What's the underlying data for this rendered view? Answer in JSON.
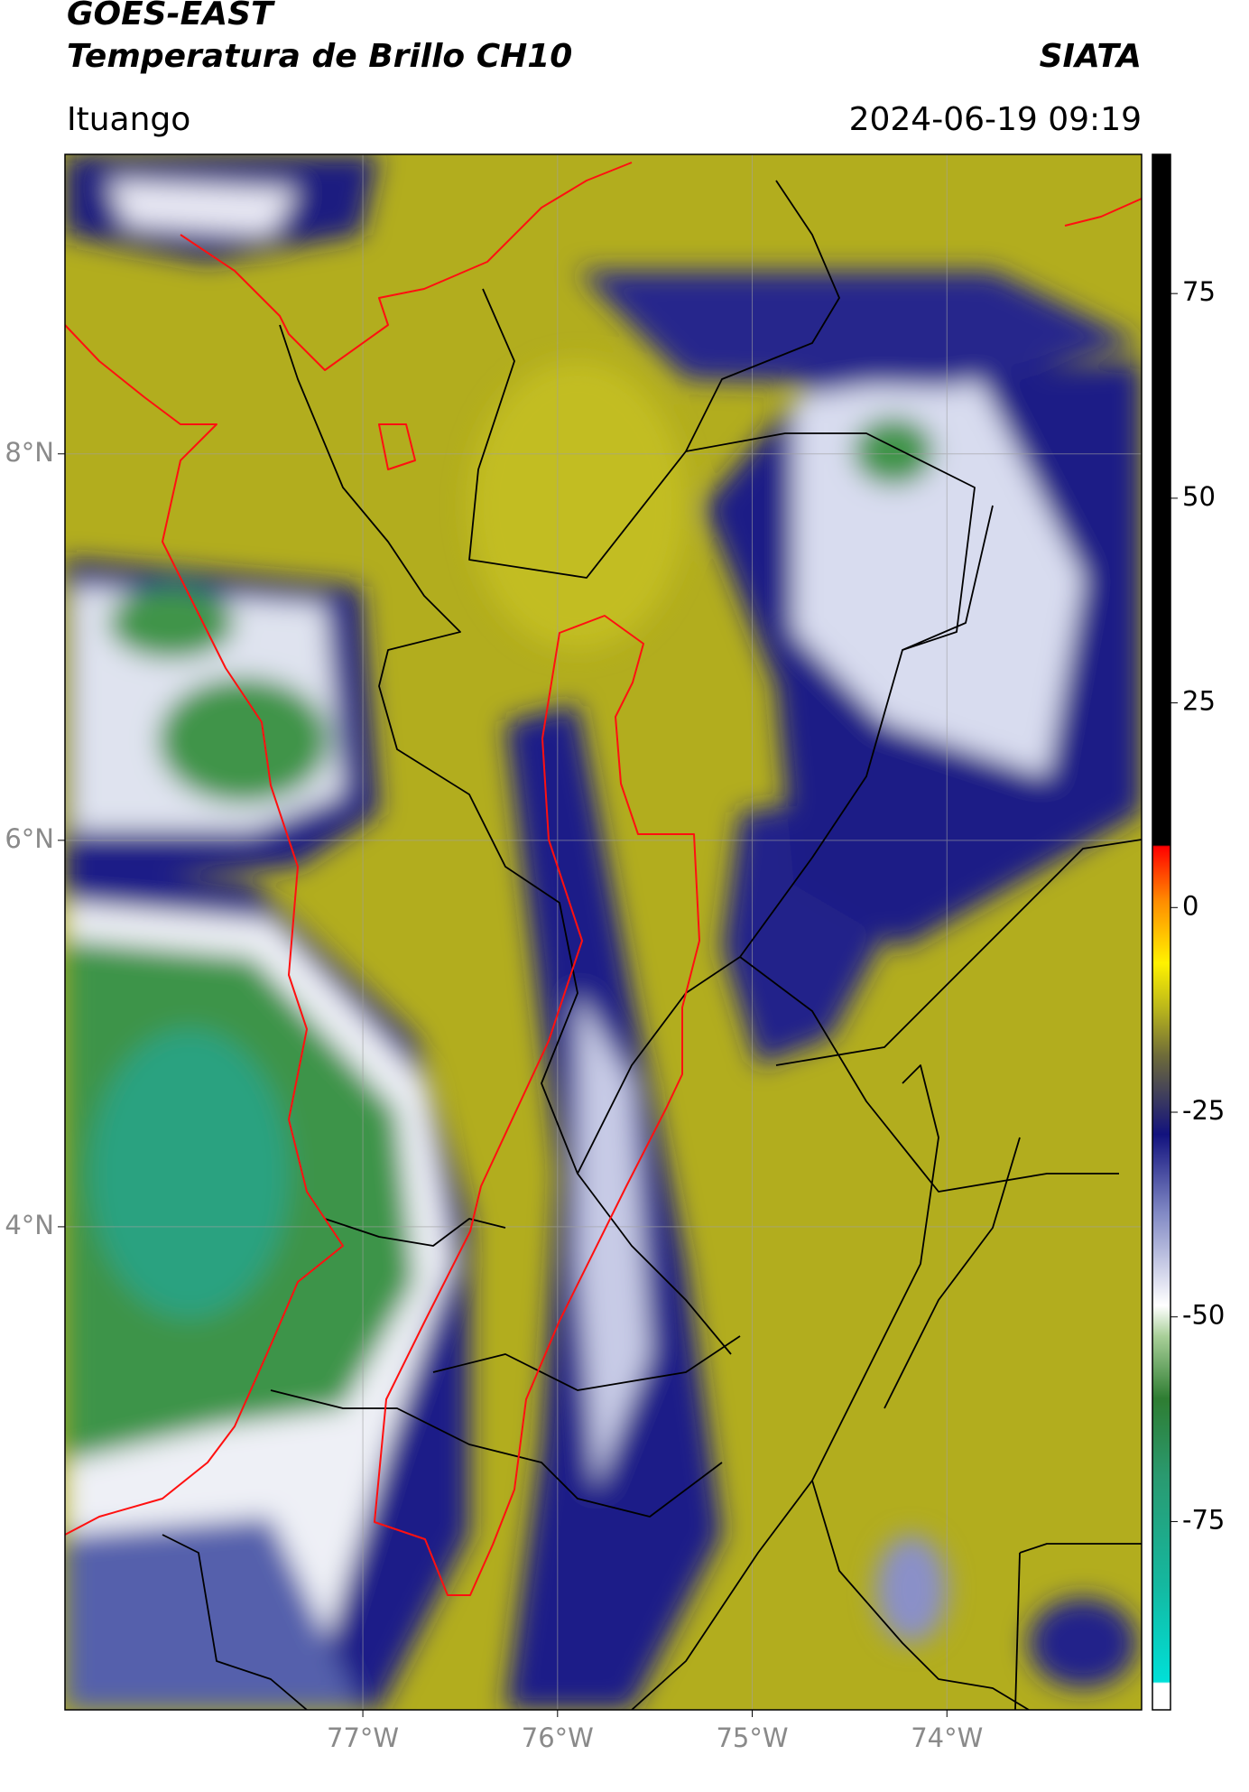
{
  "chart_data": {
    "type": "map",
    "title": "GOES-EAST",
    "subtitle": "Temperatura de Brillo CH10",
    "source": "SIATA",
    "region": "Ituango",
    "datetime": "2024-06-19 09:19",
    "xlim": [
      -78.53,
      -73.0
    ],
    "ylim": [
      1.5,
      9.55
    ],
    "xticks": [
      {
        "value": -77,
        "label": "77°W"
      },
      {
        "value": -76,
        "label": "76°W"
      },
      {
        "value": -75,
        "label": "75°W"
      },
      {
        "value": -74,
        "label": "74°W"
      }
    ],
    "yticks": [
      {
        "value": 4,
        "label": "4°N"
      },
      {
        "value": 6,
        "label": "6°N"
      },
      {
        "value": 8,
        "label": "8°N"
      }
    ],
    "colorbar_lim": [
      -98,
      92
    ],
    "colorbar_ticks": [
      -75,
      -50,
      -25,
      0,
      25,
      50,
      75
    ],
    "grid": true
  }
}
